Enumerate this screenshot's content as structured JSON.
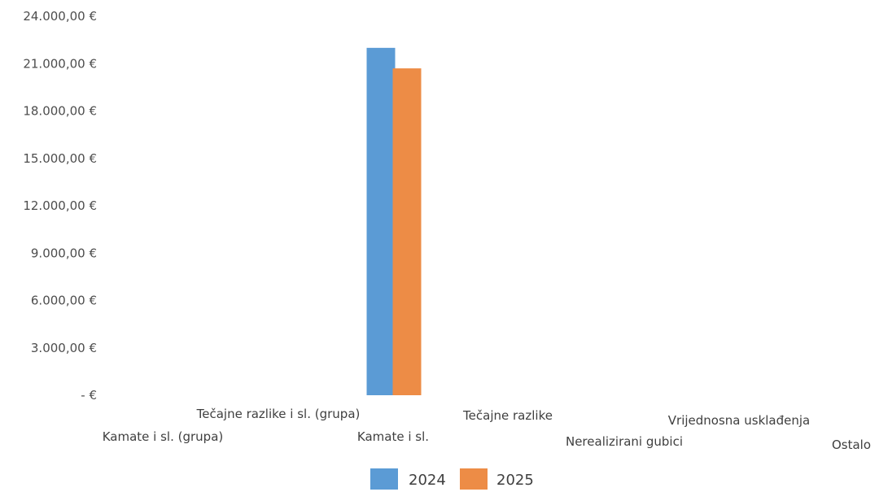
{
  "chart_data": {
    "type": "bar",
    "categories": [
      "Kamate i sl. (grupa)",
      "Tečajne razlike i sl. (grupa)",
      "Kamate i sl.",
      "Tečajne razlike",
      "Nerealizirani gubici",
      "Vrijednosna usklađenja",
      "Ostalo"
    ],
    "series": [
      {
        "name": "2024",
        "values": [
          0,
          0,
          22000,
          0,
          0,
          0,
          0
        ],
        "color": "#5b9bd5"
      },
      {
        "name": "2025",
        "values": [
          0,
          0,
          20700,
          0,
          0,
          0,
          0
        ],
        "color": "#ed8c46"
      }
    ],
    "y_ticks": [
      {
        "value": 0,
        "label": "-   €"
      },
      {
        "value": 3000,
        "label": "3.000,00 €"
      },
      {
        "value": 6000,
        "label": "6.000,00 €"
      },
      {
        "value": 9000,
        "label": "9.000,00 €"
      },
      {
        "value": 12000,
        "label": "12.000,00 €"
      },
      {
        "value": 15000,
        "label": "15.000,00 €"
      },
      {
        "value": 18000,
        "label": "18.000,00 €"
      },
      {
        "value": 21000,
        "label": "21.000,00 €"
      },
      {
        "value": 24000,
        "label": "24.000,00 €"
      }
    ],
    "ylim": [
      0,
      24000
    ],
    "grid": false,
    "legend": "bottom"
  }
}
